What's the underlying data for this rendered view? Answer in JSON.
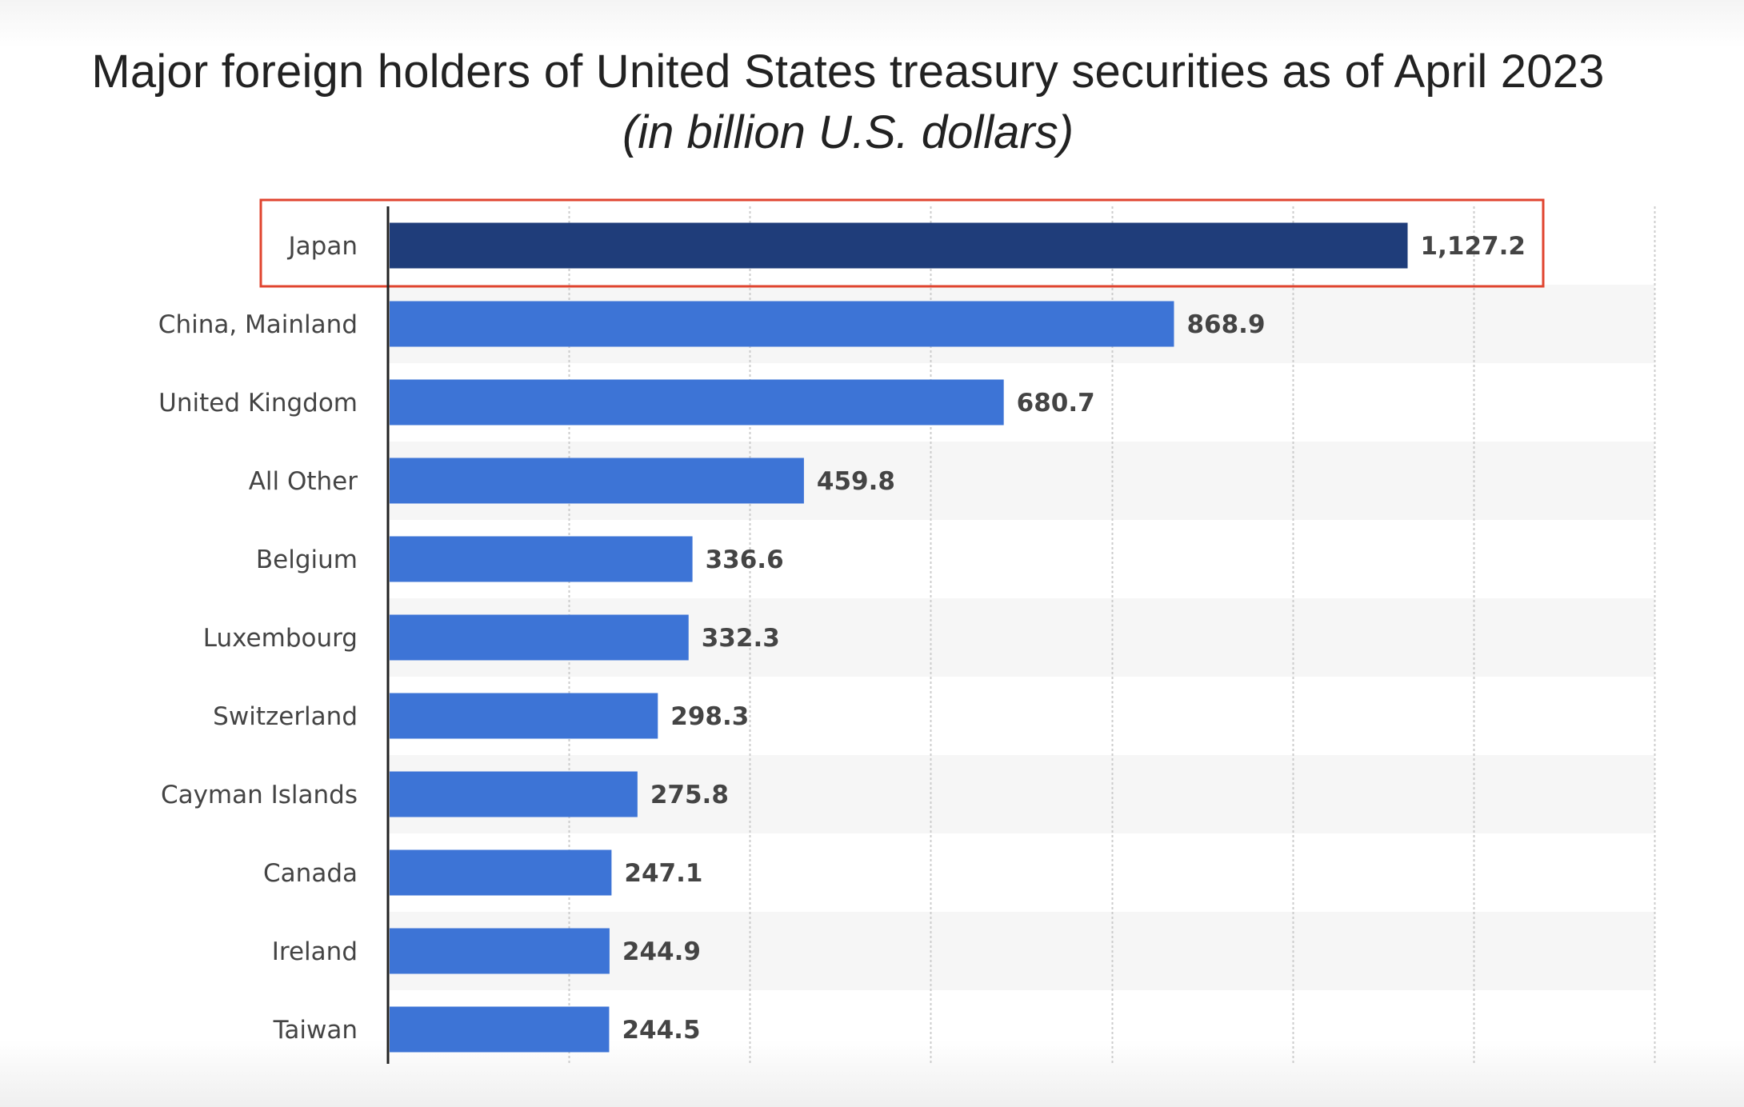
{
  "chart_data": {
    "type": "bar",
    "orientation": "horizontal",
    "title": "Major foreign holders of United States treasury securities as of April 2023",
    "subtitle": "(in billion U.S. dollars)",
    "categories": [
      "Japan",
      "China, Mainland",
      "United Kingdom",
      "All Other",
      "Belgium",
      "Luxembourg",
      "Switzerland",
      "Cayman Islands",
      "Canada",
      "Ireland",
      "Taiwan"
    ],
    "values": [
      1127.2,
      868.9,
      680.7,
      459.8,
      336.6,
      332.3,
      298.3,
      275.8,
      247.1,
      244.9,
      244.5
    ],
    "value_labels": [
      "1,127.2",
      "868.9",
      "680.7",
      "459.8",
      "336.6",
      "332.3",
      "298.3",
      "275.8",
      "247.1",
      "244.9",
      "244.5"
    ],
    "xlim": [
      0,
      1400
    ],
    "grid_step": 200,
    "grid": true,
    "highlighted_category": "Japan",
    "colors": {
      "highlight_bar": "#1f3d7a",
      "bar": "#3d74d6",
      "highlight_box": "#e0442f",
      "axis": "#222222",
      "grid": "#cccccc",
      "band": "#f6f6f6"
    }
  }
}
